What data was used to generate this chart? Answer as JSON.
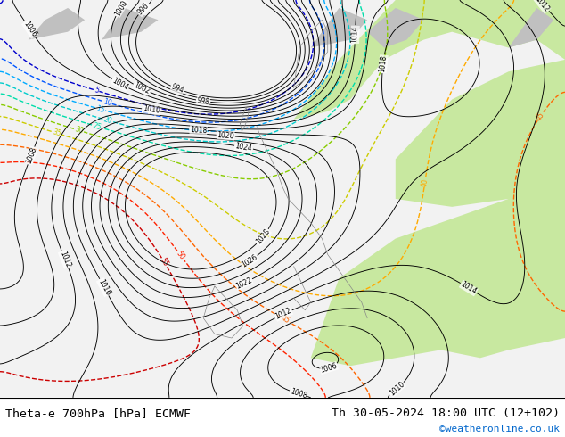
{
  "title_left": "Theta-e 700hPa [hPa] ECMWF",
  "title_right": "Th 30-05-2024 18:00 UTC (12+102)",
  "watermark": "©weatheronline.co.uk",
  "watermark_color": "#0066cc",
  "fig_width": 6.34,
  "fig_height": 4.9,
  "dpi": 100,
  "bg_color": "#ffffff",
  "title_fontsize": 9.5,
  "watermark_fontsize": 8,
  "land_white": "#f0f0f0",
  "land_green": "#c8e8a0",
  "land_gray": "#b8b8b8",
  "ocean_color": "#d8e8f0",
  "isobar_color": "#000000",
  "theta_level_colors": {
    "5": "#0000cc",
    "10": "#0055ff",
    "15": "#00aaff",
    "20": "#00cccc",
    "25": "#00ddaa",
    "30": "#88cc00",
    "35": "#cccc00",
    "40": "#ffaa00",
    "45": "#ff6600",
    "50": "#ff2200",
    "55": "#cc0000"
  }
}
